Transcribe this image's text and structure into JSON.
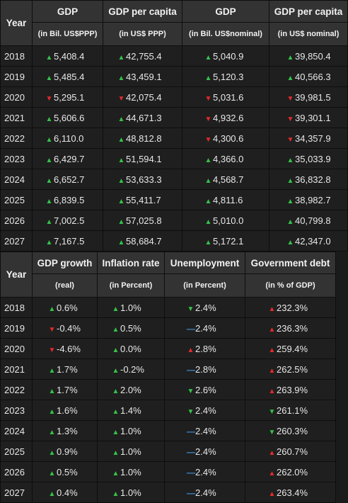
{
  "top_table": {
    "year_header": "Year",
    "columns": [
      {
        "title": "GDP",
        "subtitle": "(in Bil. US$PPP)"
      },
      {
        "title": "GDP per capita",
        "subtitle": "(in US$ PPP)"
      },
      {
        "title": "GDP",
        "subtitle": "(in Bil. US$nominal)"
      },
      {
        "title": "GDP per capita",
        "subtitle": "(in US$ nominal)"
      }
    ],
    "rows": [
      {
        "year": "2018",
        "cells": [
          {
            "dir": "up",
            "text": "5,408.4"
          },
          {
            "dir": "up",
            "text": "42,755.4"
          },
          {
            "dir": "up",
            "text": "5,040.9"
          },
          {
            "dir": "up",
            "text": "39,850.4"
          }
        ]
      },
      {
        "year": "2019",
        "cells": [
          {
            "dir": "up",
            "text": "5,485.4"
          },
          {
            "dir": "up",
            "text": "43,459.1"
          },
          {
            "dir": "up",
            "text": "5,120.3"
          },
          {
            "dir": "up",
            "text": "40,566.3"
          }
        ]
      },
      {
        "year": "2020",
        "cells": [
          {
            "dir": "down",
            "text": "5,295.1"
          },
          {
            "dir": "down",
            "text": "42,075.4"
          },
          {
            "dir": "down",
            "text": "5,031.6"
          },
          {
            "dir": "down",
            "text": "39,981.5"
          }
        ]
      },
      {
        "year": "2021",
        "cells": [
          {
            "dir": "up",
            "text": "5,606.6"
          },
          {
            "dir": "up",
            "text": "44,671.3"
          },
          {
            "dir": "down",
            "text": "4,932.6"
          },
          {
            "dir": "down",
            "text": "39,301.1"
          }
        ]
      },
      {
        "year": "2022",
        "cells": [
          {
            "dir": "up",
            "text": "6,110.0"
          },
          {
            "dir": "up",
            "text": "48,812.8"
          },
          {
            "dir": "down",
            "text": "4,300.6"
          },
          {
            "dir": "down",
            "text": "34,357.9"
          }
        ]
      },
      {
        "year": "2023",
        "cells": [
          {
            "dir": "up",
            "text": "6,429.7"
          },
          {
            "dir": "up",
            "text": "51,594.1"
          },
          {
            "dir": "up",
            "text": "4,366.0"
          },
          {
            "dir": "up",
            "text": "35,033.9"
          }
        ]
      },
      {
        "year": "2024",
        "cells": [
          {
            "dir": "up",
            "text": "6,652.7"
          },
          {
            "dir": "up",
            "text": "53,633.3"
          },
          {
            "dir": "up",
            "text": "4,568.7"
          },
          {
            "dir": "up",
            "text": "36,832.8"
          }
        ]
      },
      {
        "year": "2025",
        "cells": [
          {
            "dir": "up",
            "text": "6,839.5"
          },
          {
            "dir": "up",
            "text": "55,411.7"
          },
          {
            "dir": "up",
            "text": "4,811.6"
          },
          {
            "dir": "up",
            "text": "38,982.7"
          }
        ]
      },
      {
        "year": "2026",
        "cells": [
          {
            "dir": "up",
            "text": "7,002.5"
          },
          {
            "dir": "up",
            "text": "57,025.8"
          },
          {
            "dir": "up",
            "text": "5,010.0"
          },
          {
            "dir": "up",
            "text": "40,799.8"
          }
        ]
      },
      {
        "year": "2027",
        "cells": [
          {
            "dir": "up",
            "text": "7,167.5"
          },
          {
            "dir": "up",
            "text": "58,684.7"
          },
          {
            "dir": "up",
            "text": "5,172.1"
          },
          {
            "dir": "up",
            "text": "42,347.0"
          }
        ]
      }
    ]
  },
  "bottom_table": {
    "year_header": "Year",
    "columns": [
      {
        "title": "GDP growth",
        "subtitle": "(real)"
      },
      {
        "title": "Inflation rate",
        "subtitle": "(in Percent)"
      },
      {
        "title": "Unemployment",
        "subtitle": "(in Percent)"
      },
      {
        "title": "Government debt",
        "subtitle": "(in % of GDP)"
      }
    ],
    "rows": [
      {
        "year": "2018",
        "cells": [
          {
            "dir": "up",
            "text": "0.6%"
          },
          {
            "dir": "up",
            "text": "1.0%"
          },
          {
            "dir": "good-down",
            "text": "2.4%"
          },
          {
            "dir": "bad-up",
            "text": "232.3%"
          }
        ]
      },
      {
        "year": "2019",
        "cells": [
          {
            "dir": "down",
            "text": "-0.4%"
          },
          {
            "dir": "up",
            "text": "0.5%"
          },
          {
            "dir": "same",
            "text": "2.4%"
          },
          {
            "dir": "bad-up",
            "text": "236.3%"
          }
        ]
      },
      {
        "year": "2020",
        "cells": [
          {
            "dir": "down",
            "text": "-4.6%"
          },
          {
            "dir": "up",
            "text": "0.0%"
          },
          {
            "dir": "bad-up",
            "text": "2.8%"
          },
          {
            "dir": "bad-up",
            "text": "259.4%"
          }
        ]
      },
      {
        "year": "2021",
        "cells": [
          {
            "dir": "up",
            "text": "1.7%"
          },
          {
            "dir": "up",
            "text": "-0.2%"
          },
          {
            "dir": "same",
            "text": "2.8%"
          },
          {
            "dir": "bad-up",
            "text": "262.5%"
          }
        ]
      },
      {
        "year": "2022",
        "cells": [
          {
            "dir": "up",
            "text": "1.7%"
          },
          {
            "dir": "up",
            "text": "2.0%"
          },
          {
            "dir": "good-down",
            "text": "2.6%"
          },
          {
            "dir": "bad-up",
            "text": "263.9%"
          }
        ]
      },
      {
        "year": "2023",
        "cells": [
          {
            "dir": "up",
            "text": "1.6%"
          },
          {
            "dir": "up",
            "text": "1.4%"
          },
          {
            "dir": "good-down",
            "text": "2.4%"
          },
          {
            "dir": "good-down",
            "text": "261.1%"
          }
        ]
      },
      {
        "year": "2024",
        "cells": [
          {
            "dir": "up",
            "text": "1.3%"
          },
          {
            "dir": "up",
            "text": "1.0%"
          },
          {
            "dir": "same",
            "text": "2.4%"
          },
          {
            "dir": "good-down",
            "text": "260.3%"
          }
        ]
      },
      {
        "year": "2025",
        "cells": [
          {
            "dir": "up",
            "text": "0.9%"
          },
          {
            "dir": "up",
            "text": "1.0%"
          },
          {
            "dir": "same",
            "text": "2.4%"
          },
          {
            "dir": "bad-up",
            "text": "260.7%"
          }
        ]
      },
      {
        "year": "2026",
        "cells": [
          {
            "dir": "up",
            "text": "0.5%"
          },
          {
            "dir": "up",
            "text": "1.0%"
          },
          {
            "dir": "same",
            "text": "2.4%"
          },
          {
            "dir": "bad-up",
            "text": "262.0%"
          }
        ]
      },
      {
        "year": "2027",
        "cells": [
          {
            "dir": "up",
            "text": "0.4%"
          },
          {
            "dir": "up",
            "text": "1.0%"
          },
          {
            "dir": "same",
            "text": "2.4%"
          },
          {
            "dir": "bad-up",
            "text": "263.4%"
          }
        ]
      }
    ]
  },
  "indicator_icons": {
    "up": "green-up-triangle-icon",
    "down": "red-down-triangle-icon",
    "good-down": "green-down-triangle-icon",
    "bad-up": "red-up-triangle-icon",
    "same": "blue-dash-icon"
  },
  "colors": {
    "green": "#34c34a",
    "red": "#e52b2b",
    "blue": "#3a8fd6",
    "header_bg": "#333333",
    "cell_bg": "#1f1f1f"
  }
}
